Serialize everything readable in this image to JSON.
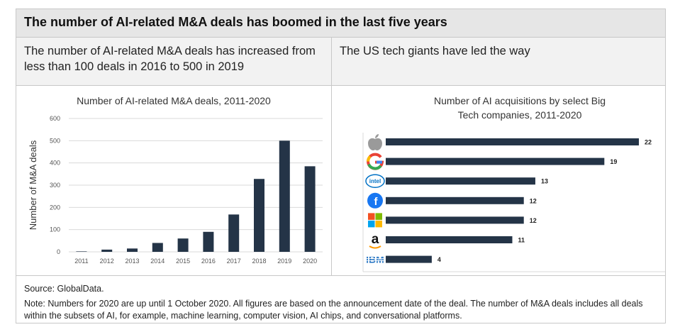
{
  "header": {
    "title": "The number of AI-related M&A deals has boomed in the last five years",
    "left_subtitle": "The number of AI-related M&A deals has increased from less than 100 deals in 2016 to 500 in 2019",
    "right_subtitle": "The US tech giants have led the way"
  },
  "footer": {
    "source": "Source: GlobalData.",
    "note": "Note: Numbers for 2020 are up until 1 October 2020. All figures are based on the announcement date of the deal. The number of M&A deals includes all deals within the subsets of AI, for example, machine learning, computer vision, AI chips, and conversational platforms."
  },
  "colors": {
    "bar": "#243447",
    "grid": "#d9d9d9",
    "axis_text": "#555555"
  },
  "chart_data": [
    {
      "type": "bar",
      "title": "Number of AI-related M&A deals, 2011-2020",
      "xlabel": "",
      "ylabel": "Number of M&A deals",
      "categories": [
        "2011",
        "2012",
        "2013",
        "2014",
        "2015",
        "2016",
        "2017",
        "2018",
        "2019",
        "2020"
      ],
      "values": [
        2,
        10,
        15,
        40,
        60,
        90,
        168,
        328,
        500,
        385
      ],
      "ylim": [
        0,
        600
      ],
      "yticks": [
        0,
        100,
        200,
        300,
        400,
        500,
        600
      ],
      "grid": true
    },
    {
      "type": "bar",
      "orientation": "horizontal",
      "title": "Number of AI acquisitions by select Big Tech companies, 2011-2020",
      "categories": [
        "apple-logo-icon",
        "google-logo-icon",
        "intel-logo-icon",
        "facebook-logo-icon",
        "microsoft-logo-icon",
        "amazon-logo-icon",
        "ibm-logo-icon"
      ],
      "values": [
        22,
        19,
        13,
        12,
        12,
        11,
        4
      ],
      "data_labels": [
        "22",
        "19",
        "13",
        "12",
        "12",
        "11",
        "4"
      ],
      "logo_text": {
        "intel": "intel",
        "ibm": "IBM"
      }
    }
  ]
}
